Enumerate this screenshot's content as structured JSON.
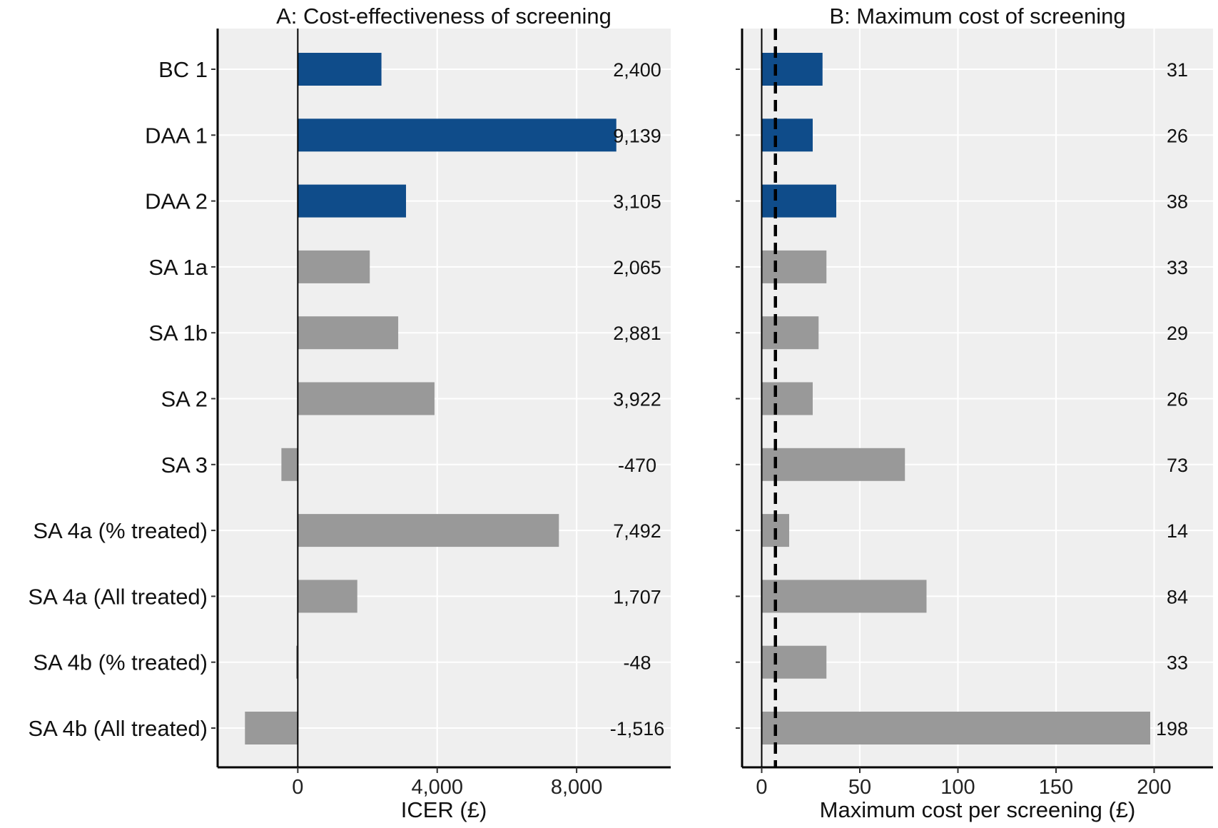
{
  "chart_data": [
    {
      "type": "bar",
      "orientation": "horizontal",
      "title": "A: Cost-effectiveness of screening",
      "xlabel": "ICER (£)",
      "ylabel": "",
      "xlim": [
        -2300,
        10700
      ],
      "xticks": [
        0,
        4000,
        8000
      ],
      "xtick_labels": [
        "0",
        "4,000",
        "8,000"
      ],
      "categories": [
        "BC 1",
        "DAA 1",
        "DAA 2",
        "SA 1a",
        "SA 1b",
        "SA 2",
        "SA 3",
        "SA 4a (% treated)",
        "SA 4a (All treated)",
        "SA 4b (% treated)",
        "SA 4b (All treated)"
      ],
      "values": [
        2400,
        9139,
        3105,
        2065,
        2881,
        3922,
        -470,
        7492,
        1707,
        -48,
        -1516
      ],
      "value_labels": [
        "2,400",
        "9,139",
        "3,105",
        "2,065",
        "2,881",
        "3,922",
        "-470",
        "7,492",
        "1,707",
        "-48",
        "-1,516"
      ],
      "bar_colors": [
        "#0f4c8a",
        "#0f4c8a",
        "#0f4c8a",
        "#999999",
        "#999999",
        "#999999",
        "#999999",
        "#999999",
        "#999999",
        "#999999",
        "#999999"
      ],
      "grid": true
    },
    {
      "type": "bar",
      "orientation": "horizontal",
      "title": "B: Maximum cost of screening",
      "xlabel": "Maximum cost per screening (£)",
      "ylabel": "",
      "xlim": [
        -10,
        230
      ],
      "xticks": [
        0,
        50,
        100,
        150,
        200
      ],
      "xtick_labels": [
        "0",
        "50",
        "100",
        "150",
        "200"
      ],
      "reference_line": 7,
      "categories": [
        "BC 1",
        "DAA 1",
        "DAA 2",
        "SA 1a",
        "SA 1b",
        "SA 2",
        "SA 3",
        "SA 4a (% treated)",
        "SA 4a (All treated)",
        "SA 4b (% treated)",
        "SA 4b (All treated)"
      ],
      "values": [
        31,
        26,
        38,
        33,
        29,
        26,
        73,
        14,
        84,
        33,
        198
      ],
      "value_labels": [
        "31",
        "26",
        "38",
        "33",
        "29",
        "26",
        "73",
        "14",
        "84",
        "33",
        "198"
      ],
      "bar_colors": [
        "#0f4c8a",
        "#0f4c8a",
        "#0f4c8a",
        "#999999",
        "#999999",
        "#999999",
        "#999999",
        "#999999",
        "#999999",
        "#999999",
        "#999999"
      ],
      "grid": true
    }
  ],
  "colors": {
    "panel_background": "#efefef",
    "gridline": "#ffffff",
    "highlight_bar": "#0f4c8a",
    "other_bar": "#999999",
    "axis_line": "#000000"
  }
}
